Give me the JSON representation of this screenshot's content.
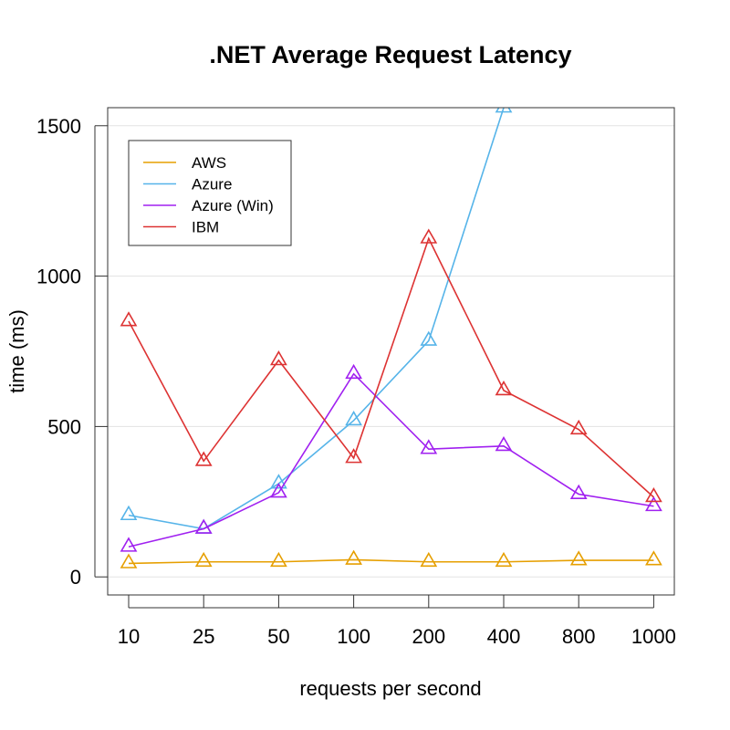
{
  "chart_data": {
    "type": "line",
    "title": ".NET Average Request Latency",
    "xlabel": "requests per second",
    "ylabel": "time (ms)",
    "categories": [
      "10",
      "25",
      "50",
      "100",
      "200",
      "400",
      "800",
      "1000"
    ],
    "yticks": [
      "0",
      "500",
      "1000",
      "1500"
    ],
    "ylim": [
      -60,
      1560
    ],
    "grid": "horizontal",
    "legend_position": "top-left",
    "marker": "open-triangle",
    "series": [
      {
        "name": "AWS",
        "color": "#E69F00",
        "values": [
          45,
          50,
          50,
          57,
          50,
          50,
          55,
          55
        ]
      },
      {
        "name": "Azure",
        "color": "#56B4E9",
        "values": [
          205,
          160,
          310,
          520,
          785,
          1560,
          null,
          null
        ]
      },
      {
        "name": "Azure (Win)",
        "color": "#A020F0",
        "values": [
          100,
          160,
          280,
          675,
          425,
          435,
          275,
          235
        ]
      },
      {
        "name": "IBM",
        "color": "#DD3333",
        "values": [
          850,
          385,
          720,
          395,
          1125,
          620,
          490,
          265
        ]
      }
    ]
  }
}
